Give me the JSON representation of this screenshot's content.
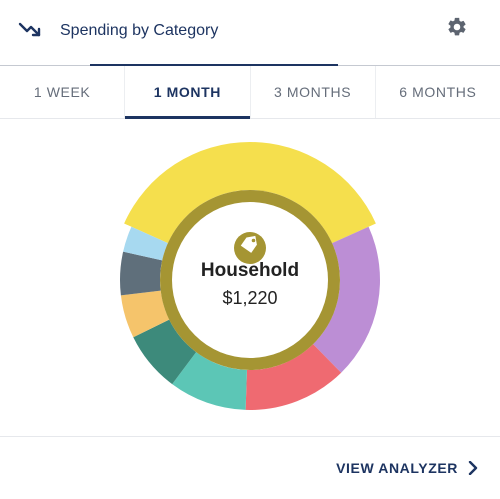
{
  "header": {
    "title": "Spending by Category",
    "trend_icon": "trending-down-icon",
    "settings_icon": "gear-icon"
  },
  "tabs": [
    {
      "label": "1 WEEK",
      "active": false
    },
    {
      "label": "1 MONTH",
      "active": true
    },
    {
      "label": "3 MONTHS",
      "active": false
    },
    {
      "label": "6 MONTHS",
      "active": false
    }
  ],
  "chart_data": {
    "type": "pie",
    "selected": {
      "name": "Household",
      "amount": "$1,220",
      "icon": "tag-icon",
      "color": "#a59533"
    },
    "slices": [
      {
        "color": "#f5df4d",
        "value": 34.0
      },
      {
        "color": "#bc8ed5",
        "value": 18.0
      },
      {
        "color": "#ef6a71",
        "value": 12.0
      },
      {
        "color": "#5cc6b6",
        "value": 9.0
      },
      {
        "color": "#3d8a7b",
        "value": 7.0
      },
      {
        "color": "#f5c46b",
        "value": 5.0
      },
      {
        "color": "#5f6f7b",
        "value": 5.0
      },
      {
        "color": "#a7d9f0",
        "value": 3.0
      }
    ]
  },
  "footer": {
    "action_label": "VIEW ANALYZER",
    "action_icon": "chevron-right-icon"
  },
  "colors": {
    "primary": "#1d3461",
    "tab_inactive": "#656d7a"
  }
}
